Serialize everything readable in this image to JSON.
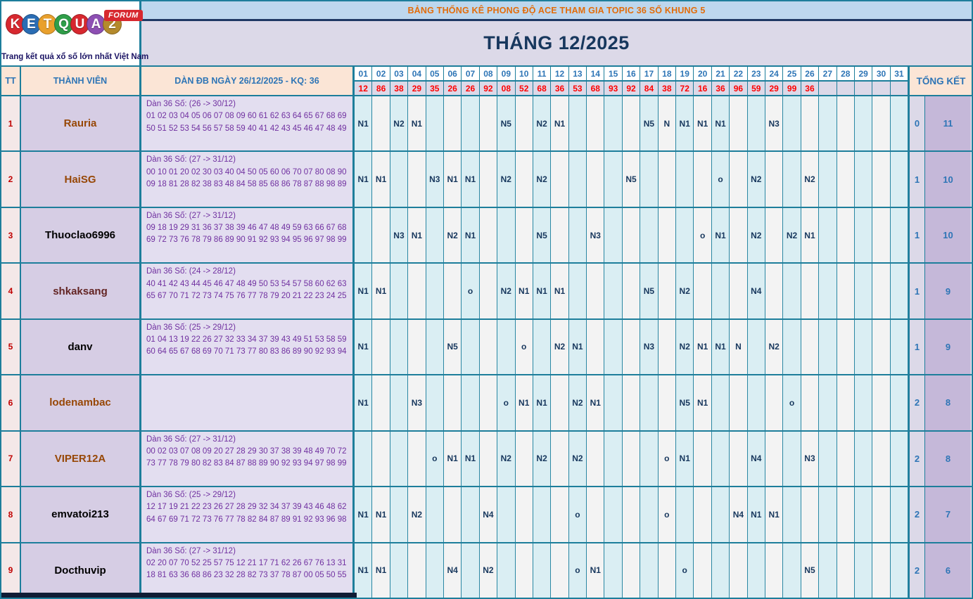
{
  "logo": {
    "letters": [
      {
        "ch": "K",
        "color": "#d7282f"
      },
      {
        "ch": "E",
        "color": "#2a6db4"
      },
      {
        "ch": "T",
        "color": "#e9a02c"
      },
      {
        "ch": "Q",
        "color": "#2f9e49"
      },
      {
        "ch": "U",
        "color": "#d7282f"
      },
      {
        "ch": "A",
        "color": "#8d4fb3"
      },
      {
        "ch": "2",
        "color": "#b48a2c"
      }
    ],
    "forum": "FORUM",
    "tagline": "Trang kết quả xổ số lớn nhất Việt Nam"
  },
  "banner": {
    "title": "BẢNG THỐNG KÊ PHONG ĐỘ ACE THAM GIA TOPIC 36 SỐ KHUNG 5"
  },
  "month_title": "THÁNG 12/2025",
  "table": {
    "headers": {
      "tt": "TT",
      "member": "THÀNH VIÊN",
      "dan": "DÀN ĐB NGÀY 26/12/2025 - KQ: 36",
      "total": "TỔNG KẾT"
    },
    "days": [
      "01",
      "02",
      "03",
      "04",
      "05",
      "06",
      "07",
      "08",
      "09",
      "10",
      "11",
      "12",
      "13",
      "14",
      "15",
      "16",
      "17",
      "18",
      "19",
      "20",
      "21",
      "22",
      "23",
      "24",
      "25",
      "26",
      "27",
      "28",
      "29",
      "30",
      "31"
    ],
    "day_results": [
      "12",
      "86",
      "38",
      "29",
      "35",
      "26",
      "26",
      "92",
      "08",
      "52",
      "68",
      "36",
      "53",
      "68",
      "93",
      "92",
      "84",
      "38",
      "72",
      "16",
      "36",
      "96",
      "59",
      "29",
      "99",
      "36",
      "",
      "",
      "",
      "",
      ""
    ],
    "rows": [
      {
        "tt": "1",
        "member": "Rauria",
        "name_color": "#974706",
        "dan_label": "Dàn 36 Số: (26 -> 30/12)",
        "dan_numbers": "01 02 03 04 05 06 07 08 09 60 61 62 63 64 65 67 68 69 50 51 52 53 54 56 57 58 59 40 41 42 43 45 46 47 48 49",
        "marks": {
          "1": "N1",
          "3": "N2",
          "4": "N1",
          "9": "N5",
          "11": "N2",
          "12": "N1",
          "17": "N5",
          "18": "N",
          "19": "N1",
          "20": "N1",
          "21": "N1",
          "24": "N3"
        },
        "total_miss": "0",
        "total_hit": "11"
      },
      {
        "tt": "2",
        "member": "HaiSG",
        "name_color": "#974706",
        "dan_label": "Dàn 36 Số: (27 -> 31/12)",
        "dan_numbers": "00 10 01 20 02 30 03 40 04 50 05 60 06 70 07 80 08 90 09 18 81 28 82 38 83 48 84 58 85 68 86 78 87 88 98 89",
        "marks": {
          "1": "N1",
          "2": "N1",
          "5": "N3",
          "6": "N1",
          "7": "N1",
          "9": "N2",
          "11": "N2",
          "16": "N5",
          "21": "o",
          "23": "N2",
          "26": "N2"
        },
        "total_miss": "1",
        "total_hit": "10"
      },
      {
        "tt": "3",
        "member": "Thuoclao6996",
        "name_color": "#000000",
        "dan_label": "Dàn 36 Số: (27 -> 31/12)",
        "dan_numbers": "09 18 19 29 31 36 37 38 39 46 47 48 49 59 63 66 67 68 69 72 73 76 78 79 86 89 90 91 92 93 94 95 96 97 98 99",
        "marks": {
          "3": "N3",
          "4": "N1",
          "6": "N2",
          "7": "N1",
          "11": "N5",
          "14": "N3",
          "20": "o",
          "21": "N1",
          "23": "N2",
          "25": "N2",
          "26": "N1"
        },
        "total_miss": "1",
        "total_hit": "10"
      },
      {
        "tt": "4",
        "member": "shkaksang",
        "name_color": "#632423",
        "dan_label": "Dàn 36 Số: (24 -> 28/12)",
        "dan_numbers": "40 41 42 43 44 45 46 47 48 49 50 53 54 57 58 60 62 63 65 67 70 71 72 73 74 75 76 77 78 79 20 21 22 23 24 25",
        "marks": {
          "1": "N1",
          "2": "N1",
          "7": "o",
          "9": "N2",
          "10": "N1",
          "11": "N1",
          "12": "N1",
          "17": "N5",
          "19": "N2",
          "23": "N4"
        },
        "total_miss": "1",
        "total_hit": "9"
      },
      {
        "tt": "5",
        "member": "danv",
        "name_color": "#000000",
        "dan_label": "Dàn 36 Số: (25 -> 29/12)",
        "dan_numbers": "01 04 13 19 22 26 27 32 33 34 37 39 43 49 51 53 58 59 60 64 65 67 68 69 70 71 73 77 80 83 86 89 90 92 93 94",
        "marks": {
          "1": "N1",
          "6": "N5",
          "10": "o",
          "12": "N2",
          "13": "N1",
          "17": "N3",
          "19": "N2",
          "20": "N1",
          "21": "N1",
          "22": "N",
          "24": "N2"
        },
        "total_miss": "1",
        "total_hit": "9"
      },
      {
        "tt": "6",
        "member": "lodenambac",
        "name_color": "#974706",
        "dan_label": "",
        "dan_numbers": "",
        "marks": {
          "1": "N1",
          "4": "N3",
          "9": "o",
          "10": "N1",
          "11": "N1",
          "13": "N2",
          "14": "N1",
          "19": "N5",
          "20": "N1",
          "25": "o"
        },
        "total_miss": "2",
        "total_hit": "8"
      },
      {
        "tt": "7",
        "member": "VIPER12A",
        "name_color": "#974706",
        "dan_label": "Dàn 36 Số: (27 -> 31/12)",
        "dan_numbers": "00 02 03 07 08 09 20 27 28 29 30 37 38 39 48 49 70 72 73 77 78 79 80 82 83 84 87 88 89 90 92 93 94 97 98 99",
        "marks": {
          "5": "o",
          "6": "N1",
          "7": "N1",
          "9": "N2",
          "11": "N2",
          "13": "N2",
          "18": "o",
          "19": "N1",
          "23": "N4",
          "26": "N3"
        },
        "total_miss": "2",
        "total_hit": "8"
      },
      {
        "tt": "8",
        "member": "emvatoi213",
        "name_color": "#000000",
        "dan_label": "Dàn 36 Số: (25 -> 29/12)",
        "dan_numbers": "12 17 19 21 22 23 26 27 28 29 32 34 37 39 43 46 48 62 64 67 69 71 72 73 76 77 78 82 84 87 89 91 92 93 96 98",
        "marks": {
          "1": "N1",
          "2": "N1",
          "4": "N2",
          "8": "N4",
          "13": "o",
          "18": "o",
          "22": "N4",
          "23": "N1",
          "24": "N1"
        },
        "total_miss": "2",
        "total_hit": "7"
      },
      {
        "tt": "9",
        "member": "Docthuvip",
        "name_color": "#000000",
        "dan_label": "Dàn 36 Số: (27 -> 31/12)",
        "dan_numbers": "02 20 07 70 52 25 57 75 12 21 17 71 62 26 67 76 13 31 18 81 63 36 68 86 23 32 28 82 73 37 78 87 00 05 50 55",
        "marks": {
          "1": "N1",
          "2": "N1",
          "6": "N4",
          "8": "N2",
          "13": "o",
          "14": "N1",
          "19": "o",
          "26": "N5"
        },
        "total_miss": "2",
        "total_hit": "6"
      }
    ]
  },
  "colors": {
    "banner_bg": "#bdd7ee",
    "banner_text": "#e36c09",
    "month_bg": "#dcd9e8",
    "month_text": "#17375d",
    "header_bg": "#fbe5d6",
    "header_text": "#2e75b6",
    "day_result_text": "#ff0000",
    "mark_text": "#17375d",
    "border_teal": "#1d7e9b",
    "col_odd": "#daeef3",
    "col_even": "#f3f3f3",
    "member_bg": "#d6cde4",
    "dan_bg": "#e3def0",
    "dan_text": "#7030a0",
    "tt_bg": "#f4e8e8",
    "tt_text": "#c00000",
    "total1_bg": "#dcd9e8",
    "total2_bg": "#c5b8d9",
    "total_text": "#2e75b6"
  }
}
